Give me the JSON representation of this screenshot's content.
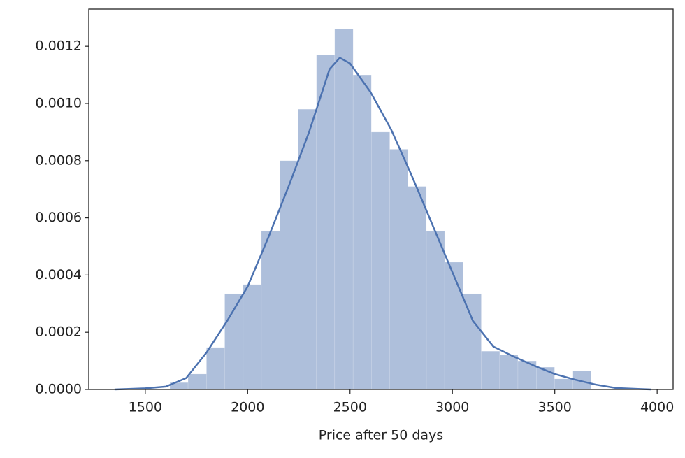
{
  "chart_data": {
    "type": "histogram",
    "x_label": "Price after 50 days",
    "bins": [
      1620,
      1709,
      1799,
      1888,
      1978,
      2067,
      2157,
      2246,
      2336,
      2425,
      2515,
      2604,
      2694,
      2783,
      2873,
      2962,
      3052,
      3141,
      3231,
      3320,
      3410,
      3499,
      3589,
      3678
    ],
    "values": [
      2.4e-05,
      5.4e-05,
      0.000147,
      0.000335,
      0.000367,
      0.000555,
      0.0008,
      0.00098,
      0.00117,
      0.00126,
      0.0011,
      0.0009,
      0.00084,
      0.00071,
      0.000555,
      0.000445,
      0.000335,
      0.000134,
      0.000122,
      0.0001,
      7.8e-05,
      3.7e-05,
      6.6e-05
    ],
    "color": "#4c72b0",
    "kde": {
      "color": "#4c72b0",
      "x": [
        1350,
        1500,
        1600,
        1700,
        1800,
        1900,
        2000,
        2100,
        2200,
        2300,
        2400,
        2450,
        2500,
        2600,
        2700,
        2800,
        2900,
        3000,
        3100,
        3200,
        3300,
        3400,
        3500,
        3600,
        3700,
        3800,
        3970
      ],
      "values": [
        0,
        4e-06,
        1e-05,
        4e-05,
        0.00013,
        0.00024,
        0.00036,
        0.00053,
        0.00071,
        0.0009,
        0.00112,
        0.00116,
        0.00114,
        0.00104,
        0.00091,
        0.00075,
        0.00058,
        0.00041,
        0.00024,
        0.00015,
        0.000115,
        8.3e-05,
        5.4e-05,
        3.4e-05,
        1.7e-05,
        5e-06,
        0
      ]
    },
    "xlim": [
      1224,
      4078
    ],
    "ylim": [
      0,
      0.00133
    ],
    "xticks": [
      1500,
      2000,
      2500,
      3000,
      3500,
      4000
    ],
    "yticks": [
      {
        "value": 0,
        "label": "0.0000"
      },
      {
        "value": 0.0002,
        "label": "0.0002"
      },
      {
        "value": 0.0004,
        "label": "0.0004"
      },
      {
        "value": 0.0006,
        "label": "0.0006"
      },
      {
        "value": 0.0008,
        "label": "0.0008"
      },
      {
        "value": 0.001,
        "label": "0.0010"
      },
      {
        "value": 0.0012,
        "label": "0.0012"
      }
    ]
  }
}
